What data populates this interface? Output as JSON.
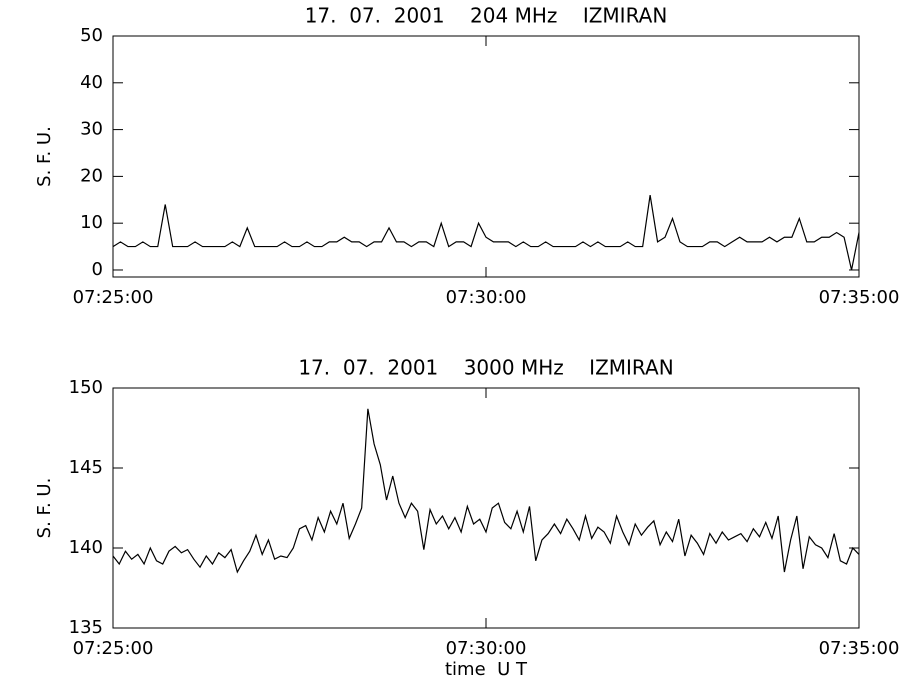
{
  "chart_data": [
    {
      "type": "line",
      "title": "17.  07.  2001    204 MHz    IZMIRAN",
      "ylabel": "S. F. U.",
      "color": "#000000",
      "xlim": [
        "07:25:00",
        "07:35:00"
      ],
      "xticks": [
        "07:25:00",
        "07:30:00",
        "07:35:00"
      ],
      "ylim": [
        -1.5,
        50
      ],
      "yticks": [
        0,
        10,
        20,
        30,
        40,
        50
      ],
      "x": [
        "07:25:00",
        "07:25:06",
        "07:25:12",
        "07:25:18",
        "07:25:24",
        "07:25:30",
        "07:25:36",
        "07:25:42",
        "07:25:48",
        "07:25:54",
        "07:26:00",
        "07:26:06",
        "07:26:12",
        "07:26:18",
        "07:26:24",
        "07:26:30",
        "07:26:36",
        "07:26:42",
        "07:26:48",
        "07:26:54",
        "07:27:00",
        "07:27:06",
        "07:27:12",
        "07:27:18",
        "07:27:24",
        "07:27:30",
        "07:27:36",
        "07:27:42",
        "07:27:48",
        "07:27:54",
        "07:28:00",
        "07:28:06",
        "07:28:12",
        "07:28:18",
        "07:28:24",
        "07:28:30",
        "07:28:36",
        "07:28:42",
        "07:28:48",
        "07:28:54",
        "07:29:00",
        "07:29:06",
        "07:29:12",
        "07:29:18",
        "07:29:24",
        "07:29:30",
        "07:29:36",
        "07:29:42",
        "07:29:48",
        "07:29:54",
        "07:30:00",
        "07:30:06",
        "07:30:12",
        "07:30:18",
        "07:30:24",
        "07:30:30",
        "07:30:36",
        "07:30:42",
        "07:30:48",
        "07:30:54",
        "07:31:00",
        "07:31:06",
        "07:31:12",
        "07:31:18",
        "07:31:24",
        "07:31:30",
        "07:31:36",
        "07:31:42",
        "07:31:48",
        "07:31:54",
        "07:32:00",
        "07:32:06",
        "07:32:12",
        "07:32:18",
        "07:32:24",
        "07:32:30",
        "07:32:36",
        "07:32:42",
        "07:32:48",
        "07:32:54",
        "07:33:00",
        "07:33:06",
        "07:33:12",
        "07:33:18",
        "07:33:24",
        "07:33:30",
        "07:33:36",
        "07:33:42",
        "07:33:48",
        "07:33:54",
        "07:34:00",
        "07:34:06",
        "07:34:12",
        "07:34:18",
        "07:34:24",
        "07:34:30",
        "07:34:36",
        "07:34:42",
        "07:34:48",
        "07:34:54",
        "07:35:00"
      ],
      "values": [
        5,
        6,
        5,
        5,
        6,
        5,
        5,
        14,
        5,
        5,
        5,
        6,
        5,
        5,
        5,
        5,
        6,
        5,
        9,
        5,
        5,
        5,
        5,
        6,
        5,
        5,
        6,
        5,
        5,
        6,
        6,
        7,
        6,
        6,
        5,
        6,
        6,
        9,
        6,
        6,
        5,
        6,
        6,
        5,
        10,
        5,
        6,
        6,
        5,
        10,
        7,
        6,
        6,
        6,
        5,
        6,
        5,
        5,
        6,
        5,
        5,
        5,
        5,
        6,
        5,
        6,
        5,
        5,
        5,
        6,
        5,
        5,
        16,
        6,
        7,
        11,
        6,
        5,
        5,
        5,
        6,
        6,
        5,
        6,
        7,
        6,
        6,
        6,
        7,
        6,
        7,
        7,
        11,
        6,
        6,
        7,
        7,
        8,
        7,
        0,
        8
      ]
    },
    {
      "type": "line",
      "title": "17.  07.  2001    3000 MHz    IZMIRAN",
      "ylabel": "S. F. U.",
      "xlabel": "time  U T",
      "color": "#000000",
      "xlim": [
        "07:25:00",
        "07:35:00"
      ],
      "xticks": [
        "07:25:00",
        "07:30:00",
        "07:35:00"
      ],
      "ylim": [
        135,
        150
      ],
      "yticks": [
        135,
        140,
        145,
        150
      ],
      "x": [
        "07:25:00",
        "07:25:05",
        "07:25:10",
        "07:25:15",
        "07:25:20",
        "07:25:25",
        "07:25:30",
        "07:25:35",
        "07:25:40",
        "07:25:45",
        "07:25:50",
        "07:25:55",
        "07:26:00",
        "07:26:05",
        "07:26:10",
        "07:26:15",
        "07:26:20",
        "07:26:25",
        "07:26:30",
        "07:26:35",
        "07:26:40",
        "07:26:45",
        "07:26:50",
        "07:26:55",
        "07:27:00",
        "07:27:05",
        "07:27:10",
        "07:27:15",
        "07:27:20",
        "07:27:25",
        "07:27:30",
        "07:27:35",
        "07:27:40",
        "07:27:45",
        "07:27:50",
        "07:27:55",
        "07:28:00",
        "07:28:05",
        "07:28:10",
        "07:28:15",
        "07:28:20",
        "07:28:25",
        "07:28:30",
        "07:28:35",
        "07:28:40",
        "07:28:45",
        "07:28:50",
        "07:28:55",
        "07:29:00",
        "07:29:05",
        "07:29:10",
        "07:29:15",
        "07:29:20",
        "07:29:25",
        "07:29:30",
        "07:29:35",
        "07:29:40",
        "07:29:45",
        "07:29:50",
        "07:29:55",
        "07:30:00",
        "07:30:05",
        "07:30:10",
        "07:30:15",
        "07:30:20",
        "07:30:25",
        "07:30:30",
        "07:30:35",
        "07:30:40",
        "07:30:45",
        "07:30:50",
        "07:30:55",
        "07:31:00",
        "07:31:05",
        "07:31:10",
        "07:31:15",
        "07:31:20",
        "07:31:25",
        "07:31:30",
        "07:31:35",
        "07:31:40",
        "07:31:45",
        "07:31:50",
        "07:31:55",
        "07:32:00",
        "07:32:05",
        "07:32:10",
        "07:32:15",
        "07:32:20",
        "07:32:25",
        "07:32:30",
        "07:32:35",
        "07:32:40",
        "07:32:45",
        "07:32:50",
        "07:32:55",
        "07:33:00",
        "07:33:05",
        "07:33:10",
        "07:33:15",
        "07:33:20",
        "07:33:25",
        "07:33:30",
        "07:33:35",
        "07:33:40",
        "07:33:45",
        "07:33:50",
        "07:33:55",
        "07:34:00",
        "07:34:05",
        "07:34:10",
        "07:34:15",
        "07:34:20",
        "07:34:25",
        "07:34:30",
        "07:34:35",
        "07:34:40",
        "07:34:45",
        "07:34:50",
        "07:34:55",
        "07:35:00"
      ],
      "values": [
        139.5,
        139.0,
        139.8,
        139.3,
        139.6,
        139.0,
        140.0,
        139.2,
        139.0,
        139.8,
        140.1,
        139.7,
        139.9,
        139.3,
        138.8,
        139.5,
        139.0,
        139.7,
        139.4,
        139.9,
        138.5,
        139.2,
        139.8,
        140.8,
        139.6,
        140.5,
        139.3,
        139.5,
        139.4,
        140.0,
        141.2,
        141.4,
        140.5,
        141.9,
        141.0,
        142.3,
        141.5,
        142.8,
        140.6,
        141.5,
        142.5,
        148.7,
        146.5,
        145.2,
        143.0,
        144.5,
        142.8,
        141.9,
        142.8,
        142.3,
        139.9,
        142.4,
        141.5,
        142.0,
        141.2,
        141.9,
        141.0,
        142.6,
        141.5,
        141.8,
        141.0,
        142.5,
        142.8,
        141.6,
        141.2,
        142.3,
        141.0,
        142.6,
        139.2,
        140.5,
        140.9,
        141.5,
        140.9,
        141.8,
        141.2,
        140.5,
        142.0,
        140.6,
        141.3,
        141.0,
        140.3,
        142.0,
        141.0,
        140.2,
        141.5,
        140.8,
        141.3,
        141.7,
        140.2,
        141.0,
        140.4,
        141.8,
        139.5,
        140.8,
        140.3,
        139.6,
        140.9,
        140.3,
        141.0,
        140.5,
        140.7,
        140.9,
        140.4,
        141.2,
        140.7,
        141.6,
        140.6,
        142.0,
        138.5,
        140.5,
        142.0,
        138.7,
        140.7,
        140.2,
        140.0,
        139.4,
        140.9,
        139.2,
        139.0,
        140.0,
        139.6
      ]
    }
  ]
}
